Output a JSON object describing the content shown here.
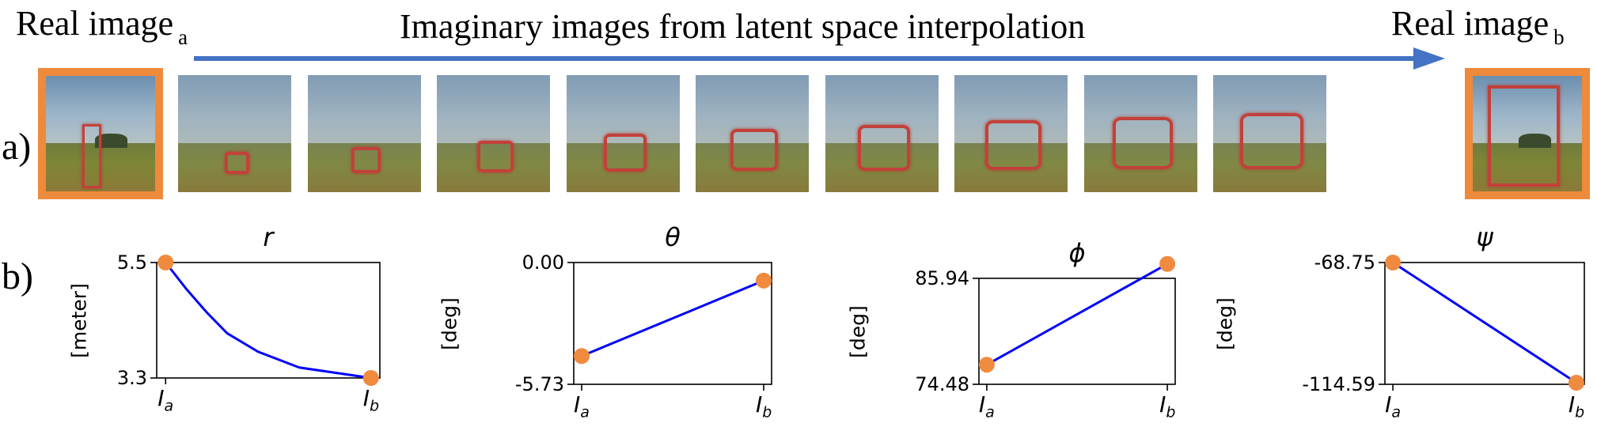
{
  "header": {
    "left_caption": "Real image",
    "left_caption_sub": "a",
    "center_caption": "Imaginary images from latent space interpolation",
    "right_caption": "Real image",
    "right_caption_sub": "b",
    "row_a": "a)",
    "row_b": "b)"
  },
  "colors": {
    "arrow": "#4472c4",
    "frame_border": "#ee8a3c",
    "line": "#0000ff",
    "marker": "#f08a3e"
  },
  "strip": {
    "frame_count": 11,
    "gate_scale": [
      0.3,
      0.22,
      0.26,
      0.32,
      0.38,
      0.42,
      0.46,
      0.5,
      0.53,
      0.56,
      0.66
    ]
  },
  "x_tick_labels": {
    "start_main": "I",
    "start_sub": "a",
    "end_main": "I",
    "end_sub": "b"
  },
  "chart_data": [
    {
      "type": "line",
      "title": "r",
      "ylabel": "[meter]",
      "yticks": [
        "5.5",
        "3.3"
      ],
      "ylim": [
        3.3,
        5.5
      ],
      "x": [
        0,
        0.1,
        0.2,
        0.3,
        0.45,
        0.65,
        1.0
      ],
      "y": [
        5.5,
        5.0,
        4.55,
        4.15,
        3.8,
        3.5,
        3.3
      ],
      "endpoints": [
        [
          0,
          5.5
        ],
        [
          1,
          3.3
        ]
      ]
    },
    {
      "type": "line",
      "title": "θ",
      "ylabel": "[deg]",
      "yticks": [
        "0.00",
        "-5.73"
      ],
      "ylim": [
        -5.73,
        0.0
      ],
      "x": [
        0,
        1
      ],
      "y": [
        -4.4,
        -0.85
      ],
      "endpoints": [
        [
          0,
          -4.4
        ],
        [
          1,
          -0.85
        ]
      ]
    },
    {
      "type": "line",
      "title": "ϕ",
      "ylabel": "[deg]",
      "yticks": [
        "85.94",
        "74.48"
      ],
      "ylim": [
        74.48,
        85.94
      ],
      "x": [
        0,
        1
      ],
      "y": [
        76.6,
        87.5
      ],
      "endpoints": [
        [
          0,
          76.6
        ],
        [
          1,
          87.5
        ]
      ]
    },
    {
      "type": "line",
      "title": "ψ",
      "ylabel": "[deg]",
      "yticks": [
        "-68.75",
        "-114.59"
      ],
      "ylim": [
        -114.59,
        -68.75
      ],
      "x": [
        0,
        1
      ],
      "y": [
        -68.75,
        -114.0
      ],
      "endpoints": [
        [
          0,
          -68.75
        ],
        [
          1,
          -114.0
        ]
      ]
    }
  ]
}
